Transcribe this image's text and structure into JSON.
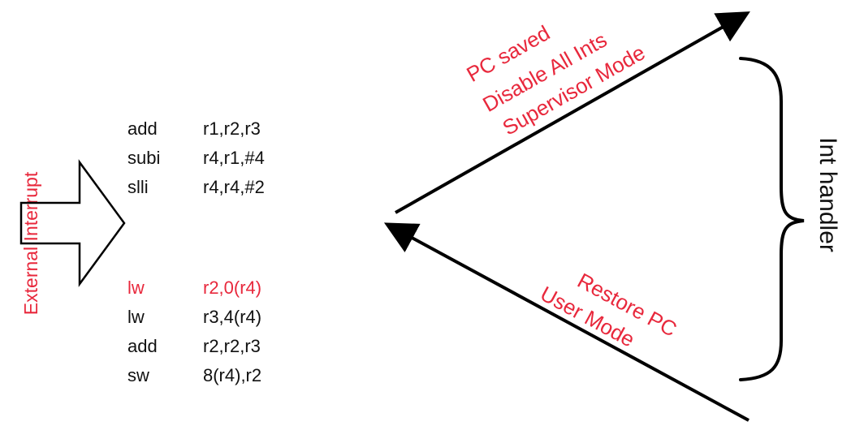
{
  "side_label": "External Interrupt",
  "instructions": [
    {
      "op": "add",
      "args": "r1,r2,r3",
      "highlight": false
    },
    {
      "op": "subi",
      "args": "r4,r1,#4",
      "highlight": false
    },
    {
      "op": "slli",
      "args": "r4,r4,#2",
      "highlight": false
    },
    {
      "op": "lw",
      "args": "r2,0(r4)",
      "highlight": true
    },
    {
      "op": "lw",
      "args": "r3,4(r4)",
      "highlight": false
    },
    {
      "op": "add",
      "args": "r2,r2,r3",
      "highlight": false
    },
    {
      "op": "sw",
      "args": "8(r4),r2",
      "highlight": false
    }
  ],
  "upper_arrow_text": [
    "PC saved",
    "Disable All Ints",
    "Supervisor Mode"
  ],
  "lower_arrow_text": [
    "Restore PC",
    "User Mode"
  ],
  "handler_label": "Int handler",
  "colors": {
    "accent": "#e8283c",
    "text": "#111111"
  }
}
